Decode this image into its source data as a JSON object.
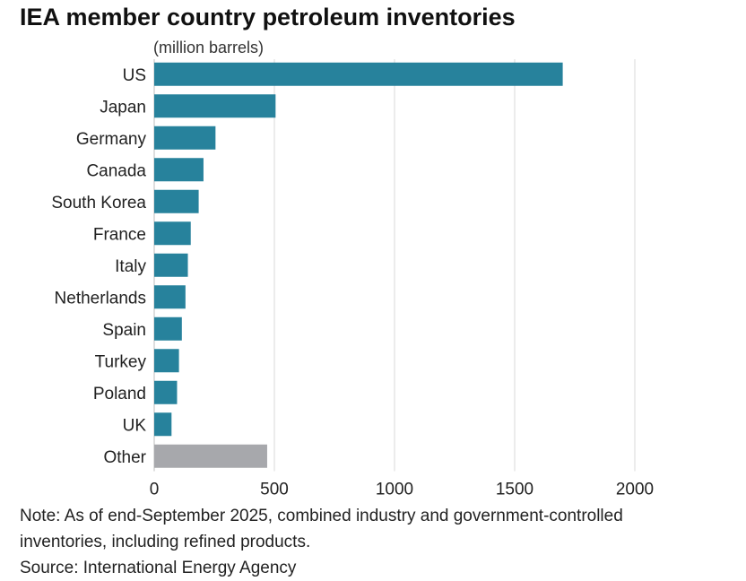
{
  "title": "IEA member country petroleum inventories",
  "notes": {
    "note_line1": "Note: As of end-September 2025, combined industry and government-controlled",
    "note_line2": "inventories, including refined products.",
    "source": "Source: International Energy Agency"
  },
  "colors": {
    "primary_bar": "#27829c",
    "other_bar": "#a7a8ac",
    "grid": "#d9d9d9"
  },
  "chart_data": {
    "type": "bar",
    "orientation": "horizontal",
    "unit_label": "(million barrels)",
    "categories": [
      "US",
      "Japan",
      "Germany",
      "Canada",
      "South Korea",
      "France",
      "Italy",
      "Netherlands",
      "Spain",
      "Turkey",
      "Poland",
      "UK",
      "Other"
    ],
    "values": [
      1700,
      505,
      255,
      205,
      185,
      152,
      140,
      130,
      115,
      103,
      95,
      72,
      470
    ],
    "xlim": [
      0,
      2000
    ],
    "xticks": [
      0,
      500,
      1000,
      1500,
      2000
    ],
    "grid": true,
    "highlight": {
      "Other": "gray"
    }
  }
}
